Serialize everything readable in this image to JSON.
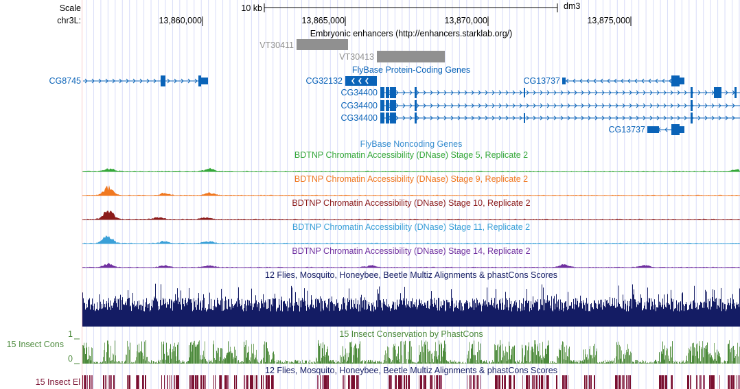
{
  "header": {
    "scale_label": "Scale",
    "scale_bar_label": "10 kb",
    "assembly": "dm3",
    "chrom_label": "chr3L:",
    "ticks": [
      "13,860,000",
      "13,865,000",
      "13,870,000",
      "13,875,000"
    ]
  },
  "enhancers": {
    "title": "Embryonic enhancers (http://enhancers.starklab.org/)",
    "items": [
      "VT30411",
      "VT30413"
    ],
    "color": "#909090"
  },
  "genes": {
    "title": "FlyBase Protein-Coding Genes",
    "labels": [
      "CG8745",
      "CG32132",
      "CG13737",
      "CG34400",
      "CG34400",
      "CG34400",
      "CG13737"
    ],
    "color": "#0a63b8"
  },
  "noncoding": {
    "title": "FlyBase Noncoding Genes",
    "color": "#3a8fd0"
  },
  "dnase": [
    {
      "title": "BDTNP Chromatin Accessibility (DNase) Stage 5, Replicate 2",
      "color": "#35a83a"
    },
    {
      "title": "BDTNP Chromatin Accessibility (DNase) Stage 9, Replicate 2",
      "color": "#f07820"
    },
    {
      "title": "BDTNP Chromatin Accessibility (DNase) Stage 10, Replicate 2",
      "color": "#8b1a1a"
    },
    {
      "title": "BDTNP Chromatin Accessibility (DNase) Stage 11, Replicate 2",
      "color": "#3aa0d8"
    },
    {
      "title": "BDTNP Chromatin Accessibility (DNase) Stage 14, Replicate 2",
      "color": "#7030a0"
    }
  ],
  "multiz": {
    "title": "12 Flies, Mosquito, Honeybee, Beetle Multiz Alignments & phastCons Scores",
    "color": "#141c64"
  },
  "cons": {
    "title": "15 Insect Conservation by PhastCons",
    "side_label": "15 Insect Cons",
    "max": "1",
    "min": "0",
    "color": "#4c8a3c"
  },
  "elements": {
    "title": "12 Flies, Mosquito, Honeybee, Beetle Multiz Alignments & phastCons Scores",
    "side_label": "15 Insect El",
    "color": "#7a1030"
  }
}
